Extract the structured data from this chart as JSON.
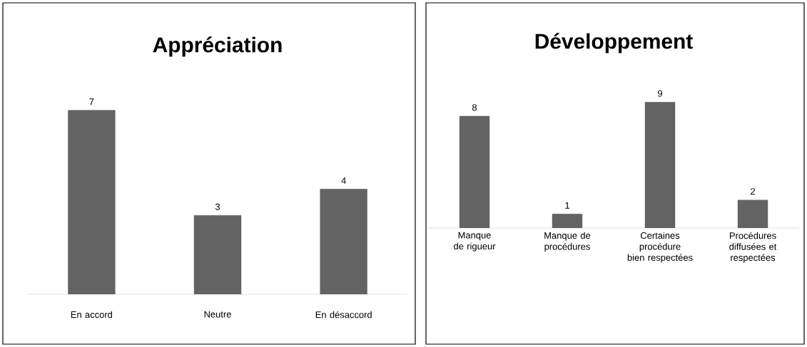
{
  "chart_data": [
    {
      "type": "bar",
      "title": "Appréciation",
      "categories": [
        "En accord",
        "Neutre",
        "En désaccord"
      ],
      "values": [
        7,
        3,
        4
      ],
      "color": "#636363",
      "data_labels": true
    },
    {
      "type": "bar",
      "title": "Développement",
      "categories": [
        "Manque de rigueur",
        "Manque de procédures",
        "Certaines procédure bien respectées",
        "Procédures diffusées et respectées"
      ],
      "values": [
        8,
        1,
        9,
        2
      ],
      "color": "#636363",
      "data_labels": true
    }
  ]
}
